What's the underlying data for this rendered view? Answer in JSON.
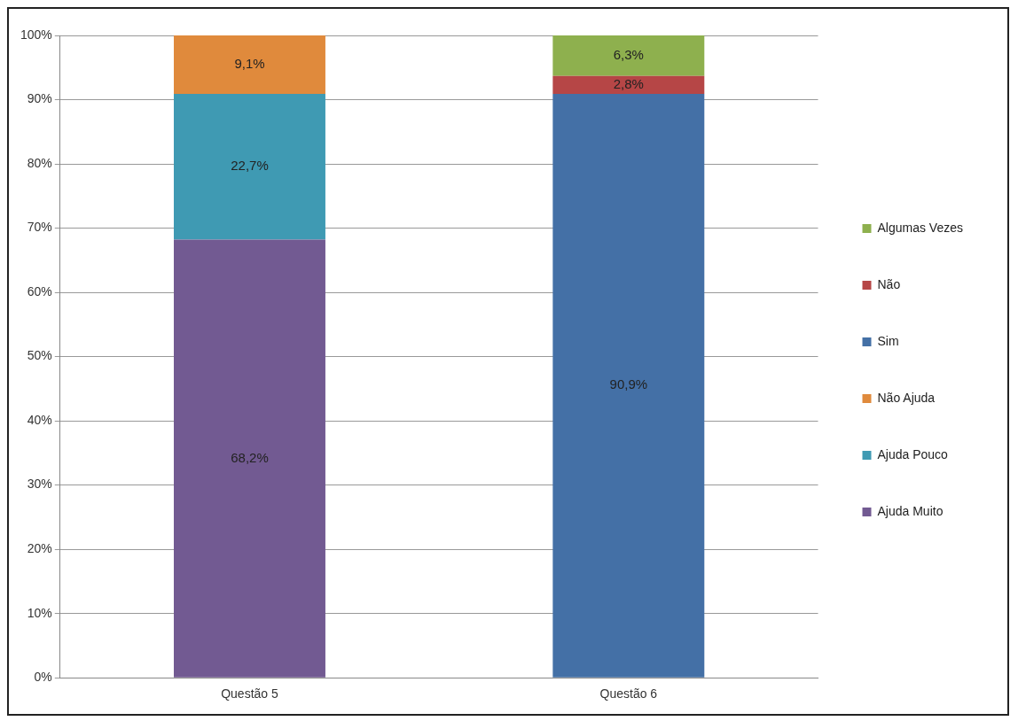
{
  "chart_data": {
    "type": "bar",
    "stacked": true,
    "categories": [
      "Questão 5",
      "Questão 6"
    ],
    "series": [
      {
        "name": "Ajuda Muito",
        "color": "#725a92",
        "values": [
          68.2,
          null
        ],
        "value_labels": [
          "68,2%",
          null
        ]
      },
      {
        "name": "Ajuda Pouco",
        "color": "#3f9ab3",
        "values": [
          22.7,
          null
        ],
        "value_labels": [
          "22,7%",
          null
        ]
      },
      {
        "name": "Não Ajuda",
        "color": "#e08a3c",
        "values": [
          9.1,
          null
        ],
        "value_labels": [
          "9,1%",
          null
        ]
      },
      {
        "name": "Sim",
        "color": "#4470a6",
        "values": [
          null,
          90.9
        ],
        "value_labels": [
          null,
          "90,9%"
        ]
      },
      {
        "name": "Não",
        "color": "#b64646",
        "values": [
          null,
          2.8
        ],
        "value_labels": [
          null,
          "2,8%"
        ]
      },
      {
        "name": "Algumas Vezes",
        "color": "#8eb04e",
        "values": [
          null,
          6.3
        ],
        "value_labels": [
          null,
          "6,3%"
        ]
      }
    ],
    "ylim": [
      0,
      100
    ],
    "yticks": [
      {
        "value": 0,
        "label": "0%"
      },
      {
        "value": 10,
        "label": "10%"
      },
      {
        "value": 20,
        "label": "20%"
      },
      {
        "value": 30,
        "label": "30%"
      },
      {
        "value": 40,
        "label": "40%"
      },
      {
        "value": 50,
        "label": "50%"
      },
      {
        "value": 60,
        "label": "60%"
      },
      {
        "value": 70,
        "label": "70%"
      },
      {
        "value": 80,
        "label": "80%"
      },
      {
        "value": 90,
        "label": "90%"
      },
      {
        "value": 100,
        "label": "100%"
      }
    ],
    "grid": "y",
    "legend": "right"
  }
}
